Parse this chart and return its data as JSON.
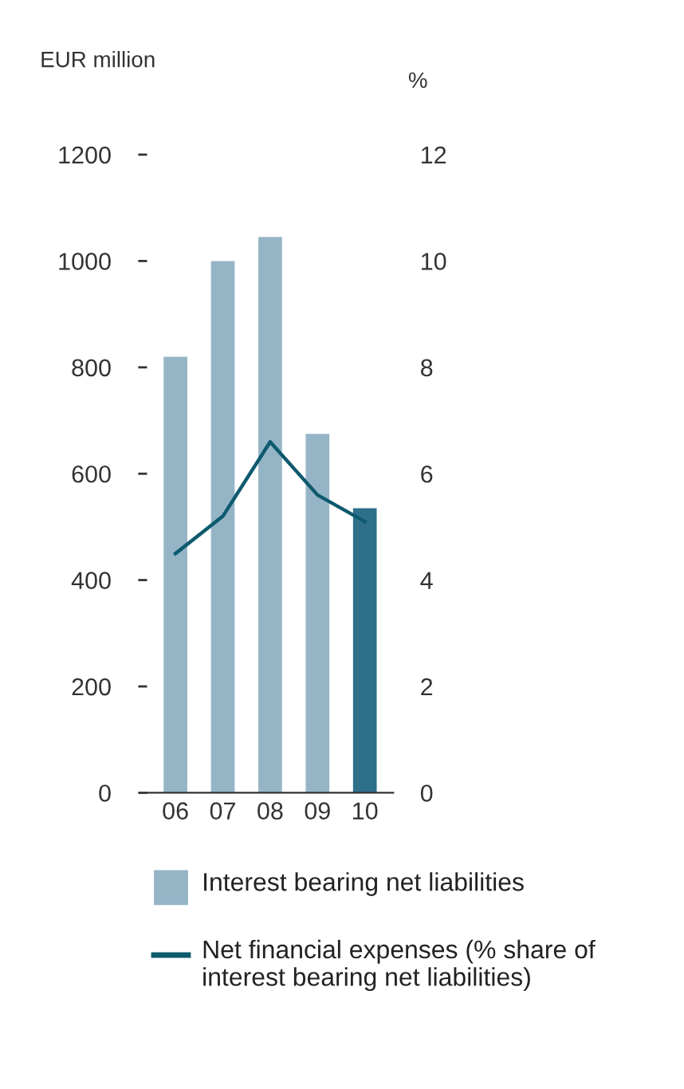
{
  "chart_data": {
    "type": "bar",
    "categories": [
      "06",
      "07",
      "08",
      "09",
      "10"
    ],
    "ylabel": "EUR million",
    "y2label": "%",
    "ylim": [
      0,
      1200
    ],
    "yticks": [
      0,
      200,
      400,
      600,
      800,
      1000,
      1200
    ],
    "y2lim": [
      0,
      12
    ],
    "y2ticks": [
      0,
      2,
      4,
      6,
      8,
      10,
      12
    ],
    "series": [
      {
        "name": "Interest bearing net liabilities",
        "color": "#95b5c7",
        "colors": [
          "#95b5c7",
          "#95b5c7",
          "#95b5c7",
          "#95b5c7",
          "#2e6f8a"
        ],
        "values": [
          820,
          1000,
          1045,
          675,
          535
        ]
      },
      {
        "name": "Net financial expenses (% share of interest bearing net liabilities)",
        "type": "line",
        "axis": "y2",
        "color": "#0e5a6e",
        "values": [
          4.5,
          5.2,
          6.6,
          5.6,
          5.1
        ]
      }
    ],
    "grid": false,
    "legend": "bottom",
    "marker": "none",
    "line_style": "solid"
  }
}
